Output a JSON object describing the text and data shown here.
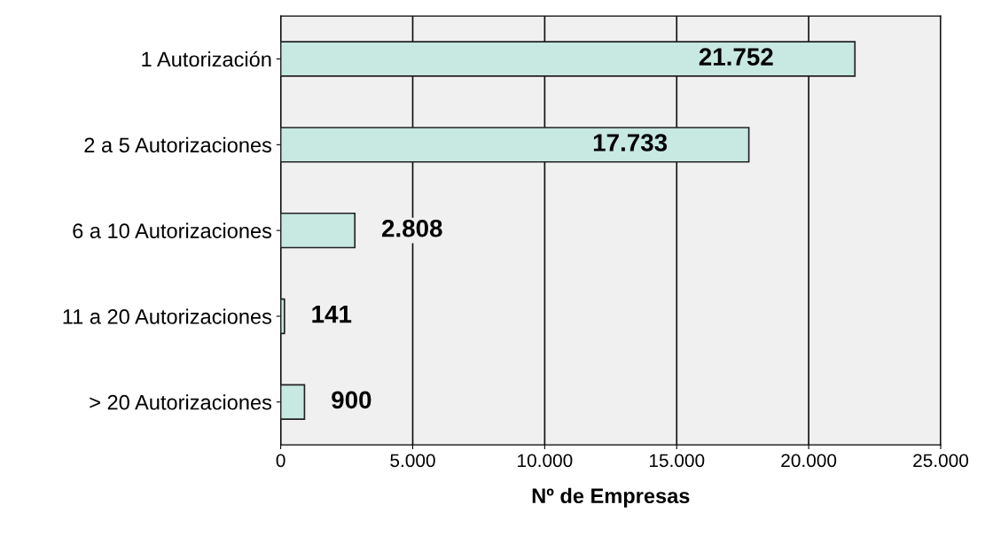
{
  "chart_data": {
    "type": "bar",
    "orientation": "horizontal",
    "xlabel": "Nº de Empresas",
    "categories": [
      "1 Autorización",
      "2 a 5 Autorizaciones",
      "6 a 10 Autorizaciones",
      "11 a 20 Autorizaciones",
      "> 20 Autorizaciones"
    ],
    "values": [
      21752,
      17733,
      2808,
      141,
      900
    ],
    "value_labels": [
      "21.752",
      "17.733",
      "2.808",
      "141",
      "900"
    ],
    "color": "#c8e8e2",
    "xlim": [
      0,
      25000
    ],
    "xticks": [
      0,
      {
        "value": 5000,
        "label": "5.000"
      },
      {
        "value": 10000,
        "label": "10.000"
      },
      {
        "value": 15000,
        "label": "15.000"
      },
      {
        "value": 20000,
        "label": "20.000"
      },
      {
        "value": 25000,
        "label": "25.000"
      }
    ],
    "grid": "x"
  }
}
